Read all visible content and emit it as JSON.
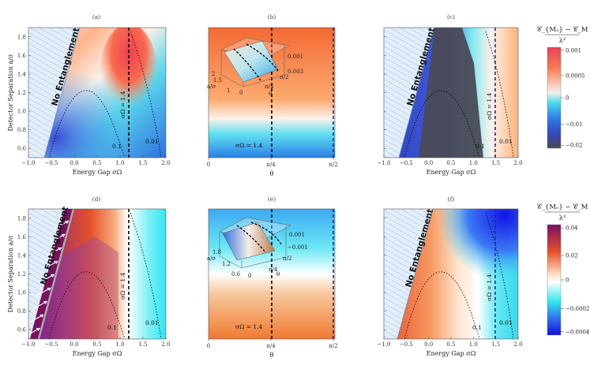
{
  "colors": {
    "row1_scale": [
      "#e8455a",
      "#ff7a3a",
      "#f5f0ea",
      "#36d4e8",
      "#2d9be8",
      "#3050c8",
      "#4a4a58"
    ],
    "row2_scale": [
      "#7a1060",
      "#e6452a",
      "#fad8b8",
      "#ffffff",
      "#28e6f0",
      "#2f6ff0",
      "#1010e0"
    ],
    "no_entanglement_fill": "#dfeefa",
    "dashed_black": "#000000",
    "dashed_blue": "#1a2aa8"
  },
  "figure": {
    "panels": [
      {
        "id": "a",
        "label": "(a)",
        "type": "heatmap"
      },
      {
        "id": "b",
        "label": "(b)",
        "type": "heatmap"
      },
      {
        "id": "c",
        "label": "(c)",
        "type": "heatmap"
      },
      {
        "id": "d",
        "label": "(d)",
        "type": "heatmap"
      },
      {
        "id": "e",
        "label": "(e)",
        "type": "heatmap"
      },
      {
        "id": "f",
        "label": "(f)",
        "type": "heatmap"
      }
    ],
    "no_entanglement": "No Entanglement",
    "sigma_omega_label": "σΩ = 1.4",
    "contour_01": "0.1",
    "contour_001": "0.01",
    "ylabel": "Detector Separation a/σ",
    "xlabel": "Energy Gap σΩ",
    "theta_label": "θ",
    "x_ticks": [
      "−1.0",
      "−0.5",
      "0.0",
      "0.5",
      "1.0",
      "1.5",
      "2.0"
    ],
    "y_ticks": [
      "0.6",
      "0.8",
      "1.0",
      "1.2",
      "1.4",
      "1.6",
      "1.8"
    ],
    "theta_ticks": [
      "0",
      "π/4",
      "π/2"
    ],
    "inset_b": {
      "left_axis": [
        "2",
        "1.5",
        "1"
      ],
      "left_label": "a/σ",
      "bottom_axis": [
        "0",
        "π/4"
      ],
      "right_axis": [
        "0.001",
        "0.003",
        "π/2"
      ],
      "theta": "θ"
    },
    "inset_e": {
      "left_axis": [
        "1.8",
        "1.2",
        "0.6"
      ],
      "left_label": "a/σ",
      "bottom_axis": [
        "0",
        "π/4"
      ],
      "right_axis": [
        "0.001",
        "−0.001",
        "π/2"
      ],
      "theta": "θ"
    }
  },
  "legend_top": {
    "title_num": "𝒞_{Mₒ} − 𝒞_M",
    "title_den": "λ²",
    "ticks": [
      "0.001",
      "0.0005",
      "0",
      "−0.01",
      "−0.02"
    ]
  },
  "legend_bottom": {
    "title_num": "𝒞_{Mₒ} − 𝒞_M",
    "title_den": "λ²",
    "ticks": [
      "0.04",
      "0.02",
      "0",
      "−0.0002",
      "−0.0004"
    ]
  },
  "chart_data": [
    {
      "type": "heatmap",
      "panel": "(a)",
      "xlabel": "Energy Gap σΩ",
      "ylabel": "Detector Separation a/σ",
      "xlim": [
        -1.0,
        2.0
      ],
      "ylim": [
        0.5,
        1.9
      ],
      "annotations": [
        "No Entanglement",
        "σΩ = 1.4",
        "0.1",
        "0.01"
      ]
    },
    {
      "type": "heatmap",
      "panel": "(b)",
      "xlabel": "θ",
      "xlim": [
        0,
        1.5708
      ],
      "annotations": [
        "σΩ = 1.4"
      ]
    },
    {
      "type": "heatmap",
      "panel": "(c)",
      "xlabel": "Energy Gap σΩ",
      "xlim": [
        -1.0,
        2.0
      ],
      "ylim": [
        0.5,
        1.9
      ],
      "annotations": [
        "No Entanglement",
        "σΩ = 1.4",
        "0.1",
        "0.01"
      ]
    },
    {
      "type": "heatmap",
      "panel": "(d)",
      "xlabel": "Energy Gap σΩ",
      "ylabel": "Detector Separation a/σ",
      "xlim": [
        -1.0,
        2.0
      ],
      "ylim": [
        0.5,
        1.9
      ],
      "annotations": [
        "No Entanglement",
        "σΩ = 1.4",
        "0.1",
        "0.01"
      ]
    },
    {
      "type": "heatmap",
      "panel": "(e)",
      "xlabel": "θ",
      "xlim": [
        0,
        1.5708
      ],
      "annotations": [
        "σΩ = 1.4"
      ]
    },
    {
      "type": "heatmap",
      "panel": "(f)",
      "xlabel": "Energy Gap σΩ",
      "xlim": [
        -1.0,
        2.0
      ],
      "ylim": [
        0.5,
        1.9
      ],
      "annotations": [
        "No Entanglement",
        "σΩ = 1.4",
        "0.1",
        "0.01"
      ]
    }
  ]
}
